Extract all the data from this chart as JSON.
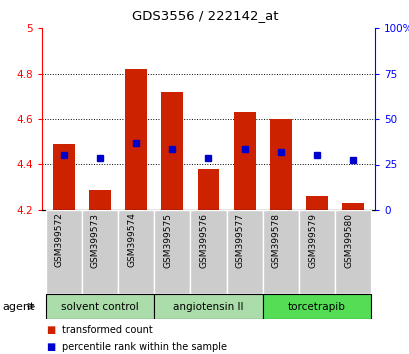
{
  "title": "GDS3556 / 222142_at",
  "samples": [
    "GSM399572",
    "GSM399573",
    "GSM399574",
    "GSM399575",
    "GSM399576",
    "GSM399577",
    "GSM399578",
    "GSM399579",
    "GSM399580"
  ],
  "red_values": [
    4.49,
    4.29,
    4.82,
    4.72,
    4.38,
    4.63,
    4.6,
    4.26,
    4.23
  ],
  "blue_values": [
    4.44,
    4.43,
    4.495,
    4.47,
    4.43,
    4.47,
    4.455,
    4.44,
    4.42
  ],
  "ymin": 4.2,
  "ymax": 5.0,
  "yticks_left": [
    4.2,
    4.4,
    4.6,
    4.8,
    5.0
  ],
  "ytick_labels_left": [
    "4.2",
    "4.4",
    "4.6",
    "4.8",
    "5"
  ],
  "yticks_right": [
    0,
    25,
    50,
    75,
    100
  ],
  "ytick_labels_right": [
    "0",
    "25",
    "50",
    "75",
    "100%"
  ],
  "groups": [
    {
      "label": "solvent control",
      "indices": [
        0,
        1,
        2
      ],
      "color": "#aaddaa"
    },
    {
      "label": "angiotensin II",
      "indices": [
        3,
        4,
        5
      ],
      "color": "#aaddaa"
    },
    {
      "label": "torcetrapib",
      "indices": [
        6,
        7,
        8
      ],
      "color": "#55cc55"
    }
  ],
  "bar_color": "#cc2200",
  "blue_color": "#0000cc",
  "sample_bg_color": "#cccccc",
  "grid_color": "#000000",
  "legend_red": "transformed count",
  "legend_blue": "percentile rank within the sample",
  "agent_label": "agent",
  "bar_width": 0.6
}
